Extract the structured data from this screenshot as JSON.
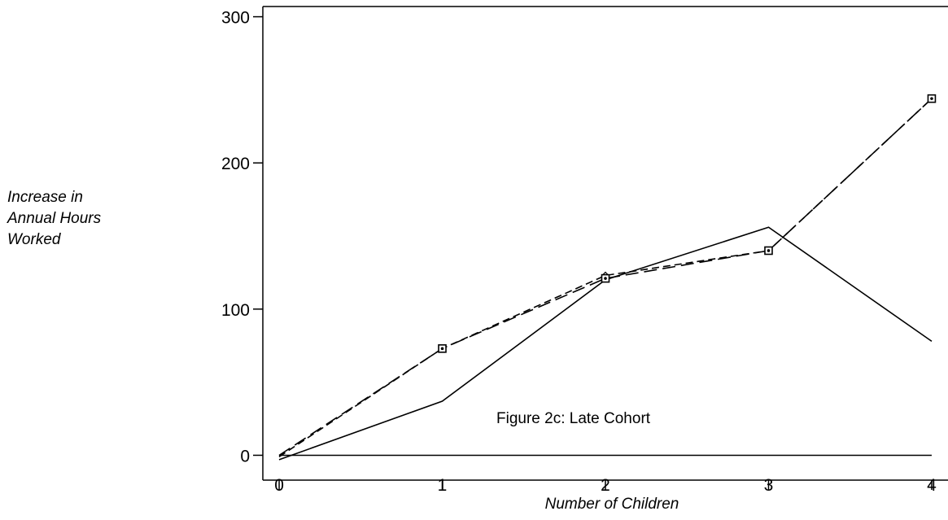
{
  "chart_data": {
    "type": "line",
    "annotation": "Figure 2c:  Late Cohort",
    "xlabel": "Number of Children",
    "ylabel_lines": [
      "Increase in",
      "Annual Hours",
      "Worked"
    ],
    "x": [
      0,
      1,
      2,
      3,
      4
    ],
    "xlim": [
      -0.1,
      4.1
    ],
    "ylim": [
      -17,
      307
    ],
    "yticks": [
      0,
      100,
      200,
      300
    ],
    "xticks": [
      0,
      1,
      2,
      3,
      4
    ],
    "grid": false,
    "reference_line": 0,
    "series": [
      {
        "values": [
          -3,
          37,
          120,
          156,
          78
        ],
        "style": "solid",
        "marker": "none",
        "color": "#000000"
      },
      {
        "values": [
          -1,
          73,
          123,
          140,
          244
        ],
        "style": "dashed",
        "marker": "diamond",
        "color": "#000000"
      },
      {
        "values": [
          0,
          73,
          121,
          140,
          244
        ],
        "style": "longdash",
        "marker": "square",
        "color": "#000000"
      }
    ]
  }
}
